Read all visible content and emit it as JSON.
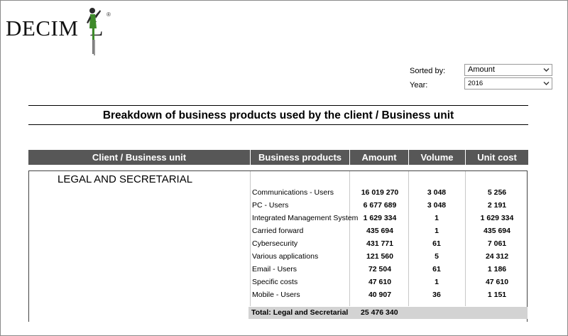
{
  "logo": {
    "text": "DECIMAL",
    "visible_text_left": "DECIM",
    "visible_text_right": "L",
    "registered": "®",
    "brand_green": "#3e8a2a"
  },
  "filters": {
    "sorted_by_label": "Sorted by:",
    "sorted_by_value": "Amount",
    "year_label": "Year:",
    "year_value": "2016"
  },
  "report": {
    "title": "Breakdown of business products used by the client  / Business unit",
    "columns": [
      "Client / Business unit",
      "Business products",
      "Amount",
      "Volume",
      "Unit cost"
    ],
    "unit": "LEGAL AND SECRETARIAL",
    "rows": [
      {
        "product": "Communications - Users",
        "amount": "16 019 270",
        "volume": "3 048",
        "unit_cost": "5 256"
      },
      {
        "product": "PC - Users",
        "amount": "6 677 689",
        "volume": "3 048",
        "unit_cost": "2 191"
      },
      {
        "product": "Integrated Management System",
        "amount": "1 629 334",
        "volume": "1",
        "unit_cost": "1 629 334"
      },
      {
        "product": "Carried forward",
        "amount": "435 694",
        "volume": "1",
        "unit_cost": "435 694"
      },
      {
        "product": "Cybersecurity",
        "amount": "431 771",
        "volume": "61",
        "unit_cost": "7 061"
      },
      {
        "product": "Various applications",
        "amount": "121 560",
        "volume": "5",
        "unit_cost": "24 312"
      },
      {
        "product": "Email - Users",
        "amount": "72 504",
        "volume": "61",
        "unit_cost": "1 186"
      },
      {
        "product": "Specific costs",
        "amount": "47 610",
        "volume": "1",
        "unit_cost": "47 610"
      },
      {
        "product": "Mobile - Users",
        "amount": "40 907",
        "volume": "36",
        "unit_cost": "1 151"
      }
    ],
    "total_label": "Total: Legal and Secretarial",
    "total_amount": "25 476 340"
  },
  "colors": {
    "header_bg": "#575757",
    "total_bg": "#d3d3d3"
  }
}
